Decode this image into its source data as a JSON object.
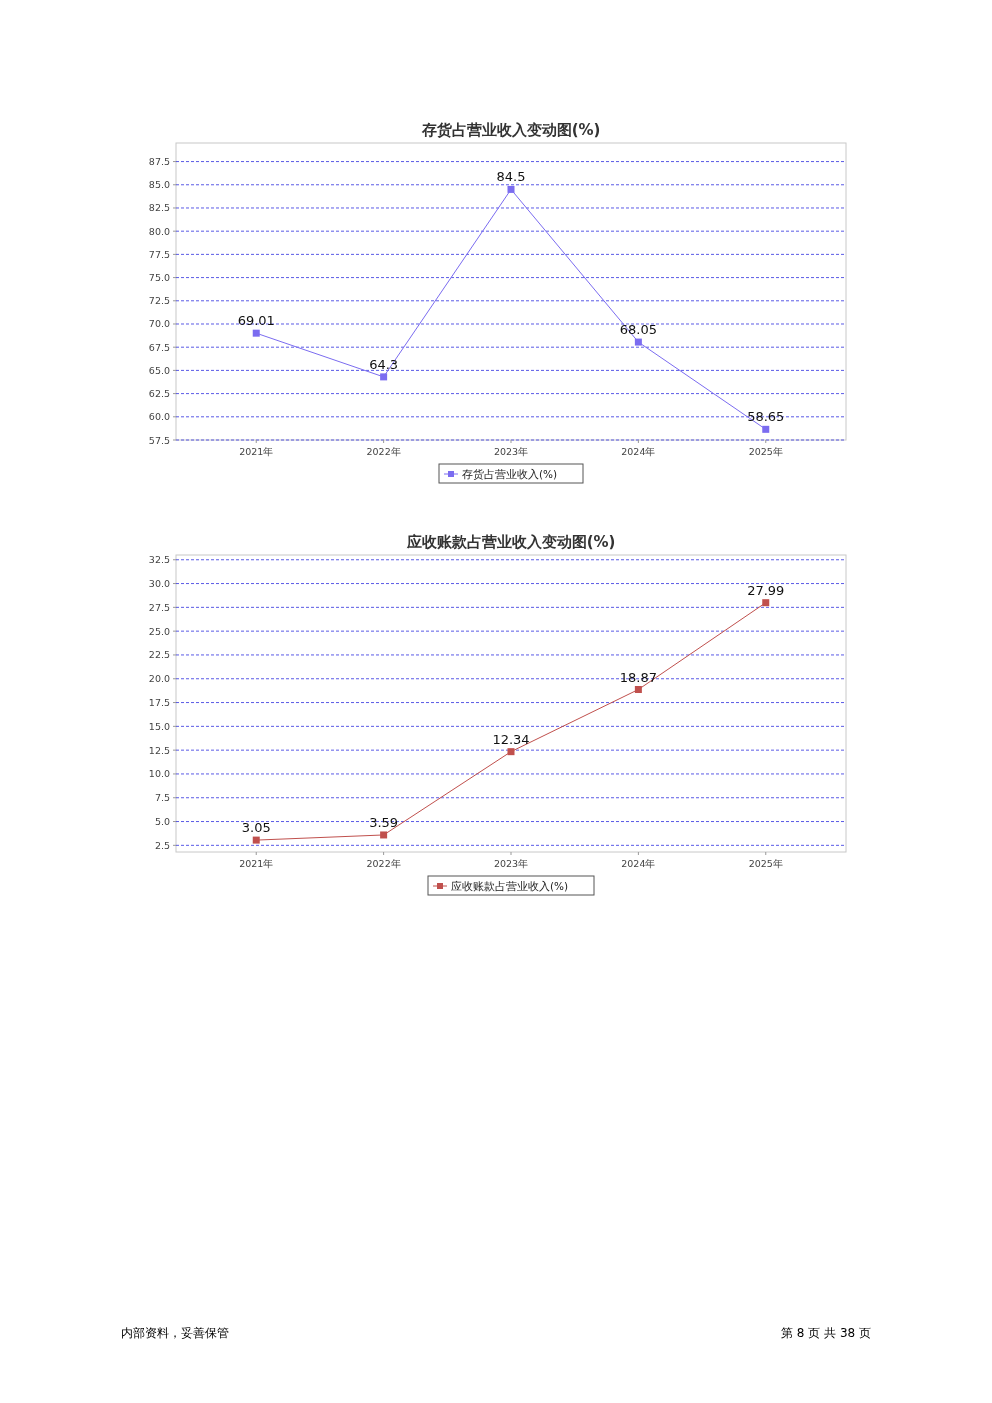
{
  "chart_data": [
    {
      "type": "line",
      "title": "存货占营业收入变动图(%)",
      "categories": [
        "2021年",
        "2022年",
        "2023年",
        "2024年",
        "2025年"
      ],
      "series": [
        {
          "name": "存货占营业收入(%)",
          "color": "#7b6cf0",
          "values": [
            69.01,
            64.3,
            84.5,
            68.05,
            58.65
          ]
        }
      ],
      "ylim": [
        57.5,
        89.5
      ],
      "yticks": [
        57.5,
        {
          "value": 60,
          "label": "60.0"
        },
        62.5,
        {
          "value": 65,
          "label": "65.0"
        },
        67.5,
        {
          "value": 70,
          "label": "70.0"
        },
        72.5,
        {
          "value": 75,
          "label": "75.0"
        },
        77.5,
        {
          "value": 80,
          "label": "80.0"
        },
        82.5,
        {
          "value": 85,
          "label": "85.0"
        },
        87.5
      ],
      "grid": "y",
      "legend": "bottom",
      "marker": "square",
      "data_labels": true
    },
    {
      "type": "line",
      "title": "应收账款占营业收入变动图(%)",
      "categories": [
        "2021年",
        "2022年",
        "2023年",
        "2024年",
        "2025年"
      ],
      "series": [
        {
          "name": "应收账款占营业收入(%)",
          "color": "#c0504d",
          "values": [
            3.05,
            3.59,
            12.34,
            18.87,
            27.99
          ]
        }
      ],
      "ylim": [
        1.8,
        33
      ],
      "yticks": [
        2.5,
        {
          "value": 5,
          "label": "5.0"
        },
        7.5,
        {
          "value": 10,
          "label": "10.0"
        },
        12.5,
        {
          "value": 15,
          "label": "15.0"
        },
        17.5,
        {
          "value": 20,
          "label": "20.0"
        },
        22.5,
        {
          "value": 25,
          "label": "25.0"
        },
        27.5,
        {
          "value": 30,
          "label": "30.0"
        },
        32.5
      ],
      "grid": "y",
      "legend": "bottom",
      "marker": "square",
      "data_labels": true,
      "annotations": [
        "内部资料，妥善保管",
        "第 8 页 共 38 页"
      ]
    }
  ]
}
